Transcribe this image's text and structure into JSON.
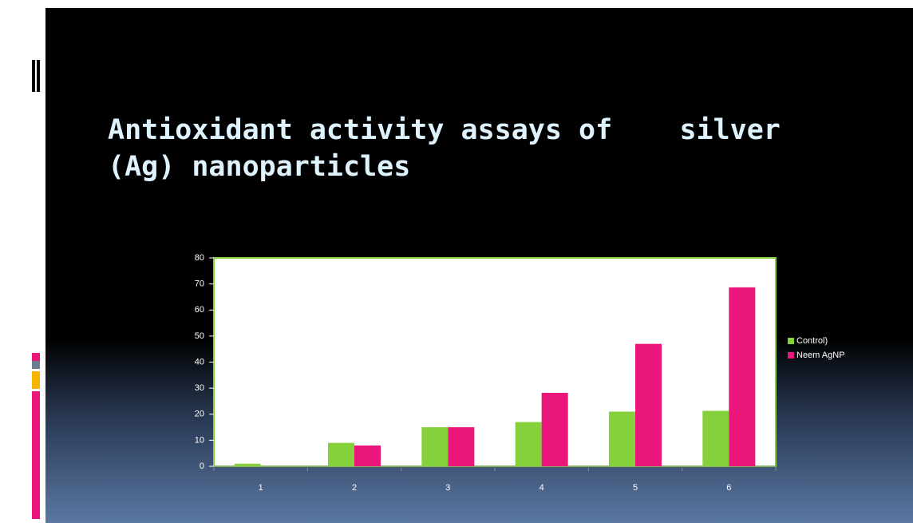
{
  "chart_data": {
    "type": "bar",
    "title": "Antioxidant activity assays of    silver (Ag) nanoparticles",
    "categories": [
      "1",
      "2",
      "3",
      "4",
      "5",
      "6"
    ],
    "series": [
      {
        "name": "Control)",
        "color": "#84d13c",
        "values": [
          1,
          9,
          15,
          17,
          21,
          21.3
        ]
      },
      {
        "name": "Neem AgNP",
        "color": "#ea167b",
        "values": [
          0,
          8,
          15,
          28.2,
          47,
          68.7
        ]
      }
    ],
    "ylim": [
      0,
      80
    ],
    "yticks": [
      0,
      10,
      20,
      30,
      40,
      50,
      60,
      70,
      80
    ],
    "legend": "right"
  }
}
